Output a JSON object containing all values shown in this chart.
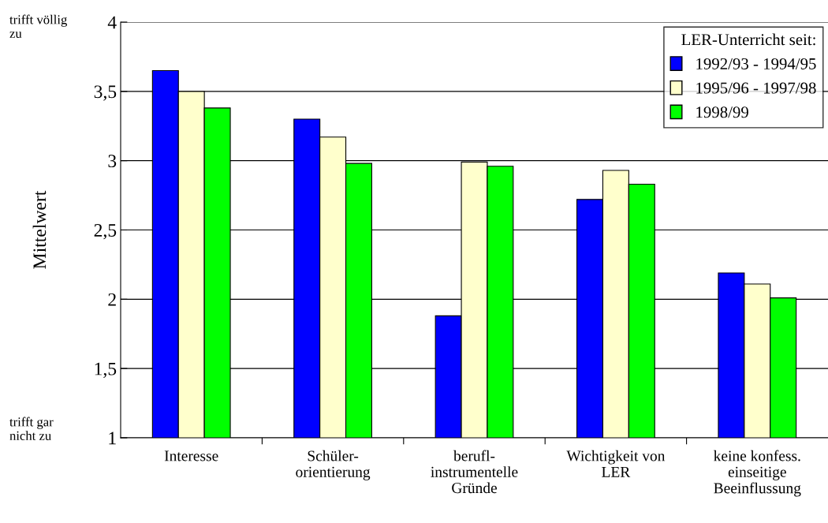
{
  "chart_data": {
    "type": "bar",
    "ylabel": "Mittelwert",
    "legend_title": "LER-Unterricht seit:",
    "categories": [
      "Interesse",
      "Schüler-\norientierung",
      "berufl-\ninstrumentelle\nGründe",
      "Wichtigkeit von\nLER",
      "keine konfess.\neinseitige\nBeeinflussung"
    ],
    "series": [
      {
        "name": "1992/93 - 1994/95",
        "color": "#0000ff",
        "values": [
          3.65,
          3.3,
          1.88,
          2.72,
          2.19
        ]
      },
      {
        "name": "1995/96 - 1997/98",
        "color": "#ffffcc",
        "values": [
          3.5,
          3.17,
          2.99,
          2.93,
          2.11
        ]
      },
      {
        "name": "1998/99",
        "color": "#00ff00",
        "values": [
          3.38,
          2.98,
          2.96,
          2.83,
          2.01
        ]
      }
    ],
    "ylim": [
      1,
      4
    ],
    "yticks": [
      {
        "value": 1,
        "label": "1"
      },
      {
        "value": 1.5,
        "label": "1,5"
      },
      {
        "value": 2,
        "label": "2"
      },
      {
        "value": 2.5,
        "label": "2,5"
      },
      {
        "value": 3,
        "label": "3"
      },
      {
        "value": 3.5,
        "label": "3,5"
      },
      {
        "value": 4,
        "label": "4"
      }
    ],
    "grid": "y",
    "legend": "top right",
    "annotations": [
      "trifft völlig\nzu",
      "trifft gar\nnicht zu"
    ]
  }
}
